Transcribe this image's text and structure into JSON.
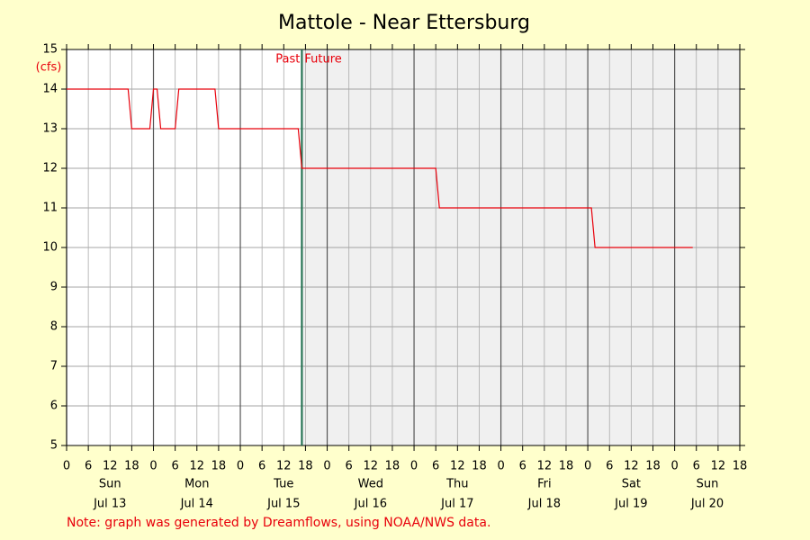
{
  "chart_data": {
    "type": "line",
    "title": "Mattole - Near Ettersburg",
    "y_label": "(cfs)",
    "x": [
      0,
      17,
      18,
      23,
      24,
      25,
      26,
      30,
      31,
      41,
      42,
      64,
      65,
      102,
      103,
      145,
      146,
      173
    ],
    "series": [
      {
        "color": "#e8000b",
        "values": [
          14,
          14,
          13,
          13,
          14,
          14,
          13,
          13,
          14,
          14,
          13,
          13,
          12,
          12,
          11,
          11,
          10,
          10
        ]
      }
    ],
    "xlim": [
      0,
      186
    ],
    "xticks": [
      0,
      6,
      12,
      18,
      {
        "value": 24,
        "label": "0"
      },
      {
        "value": 30,
        "label": "6"
      },
      {
        "value": 36,
        "label": "12"
      },
      {
        "value": 42,
        "label": "18"
      },
      {
        "value": 48,
        "label": "0"
      },
      {
        "value": 54,
        "label": "6"
      },
      {
        "value": 60,
        "label": "12"
      },
      {
        "value": 66,
        "label": "18"
      },
      {
        "value": 72,
        "label": "0"
      },
      {
        "value": 78,
        "label": "6"
      },
      {
        "value": 84,
        "label": "12"
      },
      {
        "value": 90,
        "label": "18"
      },
      {
        "value": 96,
        "label": "0"
      },
      {
        "value": 102,
        "label": "6"
      },
      {
        "value": 108,
        "label": "12"
      },
      {
        "value": 114,
        "label": "18"
      },
      {
        "value": 120,
        "label": "0"
      },
      {
        "value": 126,
        "label": "6"
      },
      {
        "value": 132,
        "label": "12"
      },
      {
        "value": 138,
        "label": "18"
      },
      {
        "value": 144,
        "label": "0"
      },
      {
        "value": 150,
        "label": "6"
      },
      {
        "value": 156,
        "label": "12"
      },
      {
        "value": 162,
        "label": "18"
      },
      {
        "value": 168,
        "label": "0"
      },
      {
        "value": 174,
        "label": "6"
      },
      {
        "value": 180,
        "label": "12"
      },
      {
        "value": 186,
        "label": "18"
      }
    ],
    "day_labels": [
      {
        "weekday": "Sun",
        "date": "Jul 13"
      },
      {
        "weekday": "Mon",
        "date": "Jul 14"
      },
      {
        "weekday": "Tue",
        "date": "Jul 15"
      },
      {
        "weekday": "Wed",
        "date": "Jul 16"
      },
      {
        "weekday": "Thu",
        "date": "Jul 17"
      },
      {
        "weekday": "Fri",
        "date": "Jul 18"
      },
      {
        "weekday": "Sat",
        "date": "Jul 19"
      },
      {
        "weekday": "Sun",
        "date": "Jul 20"
      }
    ],
    "ylim": [
      5,
      15
    ],
    "yticks": [
      5,
      6,
      7,
      8,
      9,
      10,
      11,
      12,
      13,
      14,
      15
    ],
    "now": 65,
    "past_label": "Past",
    "future_label": "Future",
    "grid": true,
    "note": "Note: graph was generated by Dreamflows, using NOAA/NWS data."
  }
}
